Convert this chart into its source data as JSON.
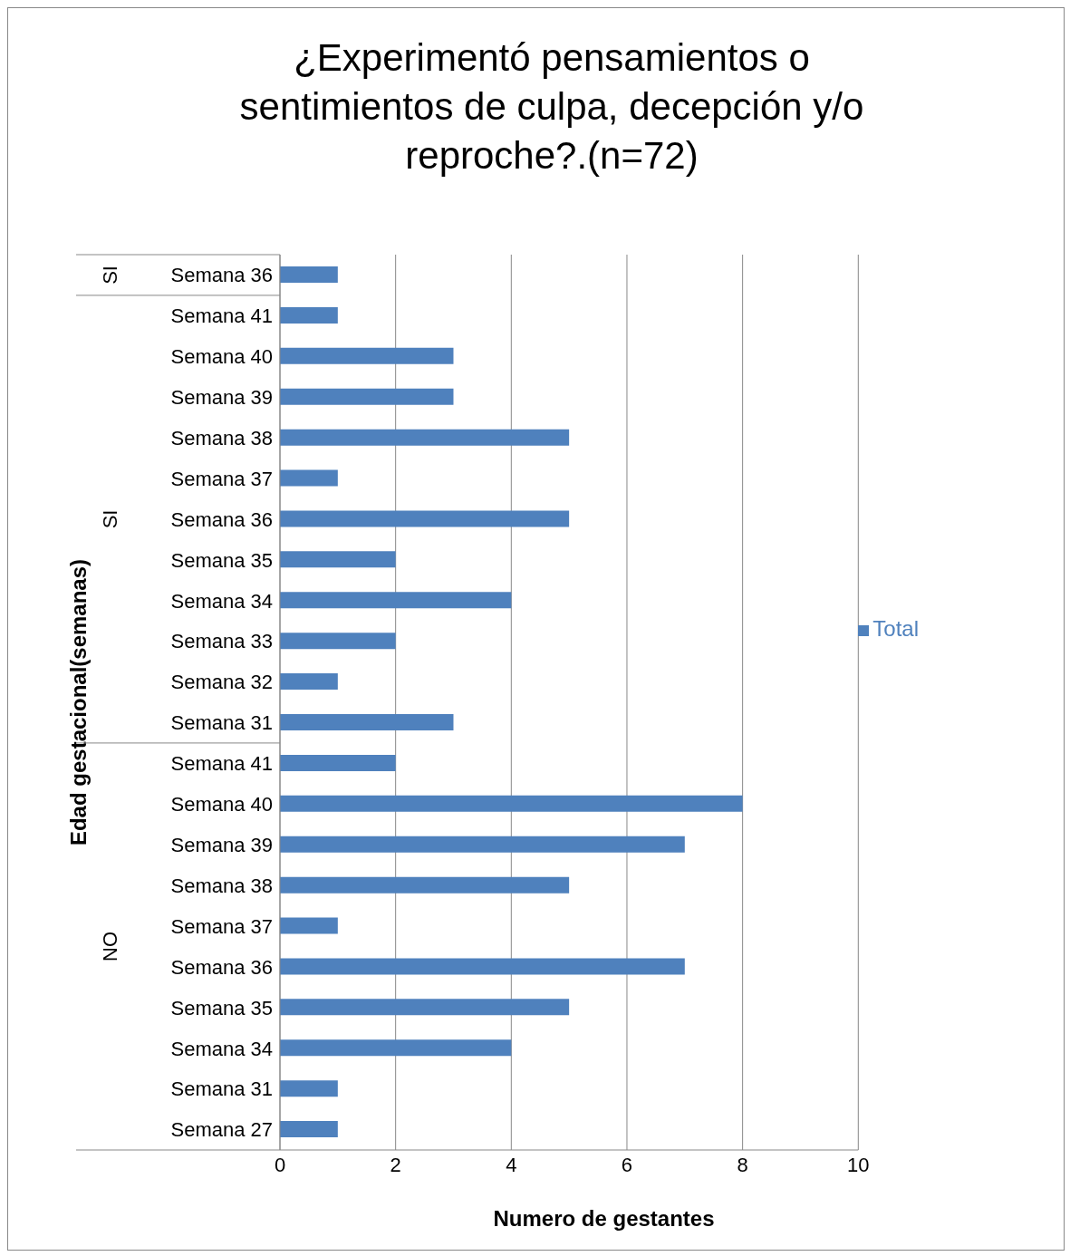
{
  "chart_data": {
    "type": "bar",
    "orientation": "horizontal",
    "title": "¿Experimentó pensamientos o sentimientos de culpa, decepción y/o reproche?.(n=72)",
    "xlabel": "Numero de gestantes",
    "ylabel": "Edad gestacional(semanas)",
    "categories": [
      "Semana 36",
      "Semana 41",
      "Semana 40",
      "Semana 39",
      "Semana 38",
      "Semana 37",
      "Semana 36",
      "Semana 35",
      "Semana 34",
      "Semana 33",
      "Semana 32",
      "Semana 31",
      "Semana 41",
      "Semana 40",
      "Semana 39",
      "Semana 38",
      "Semana 37",
      "Semana 36",
      "Semana 35",
      "Semana 34",
      "Semana 31",
      "Semana 27"
    ],
    "series": [
      {
        "name": "Total",
        "color": "#4f81bd",
        "values": [
          1,
          1,
          3,
          3,
          5,
          1,
          5,
          2,
          4,
          2,
          1,
          3,
          2,
          8,
          7,
          5,
          1,
          7,
          5,
          4,
          1,
          1
        ]
      }
    ],
    "annotations": [
      "SI",
      "SI",
      "NO"
    ],
    "xlim": [
      0,
      10
    ],
    "xticks": [
      0,
      2,
      4,
      6,
      8,
      10
    ],
    "grid": "x",
    "legend": "right"
  }
}
